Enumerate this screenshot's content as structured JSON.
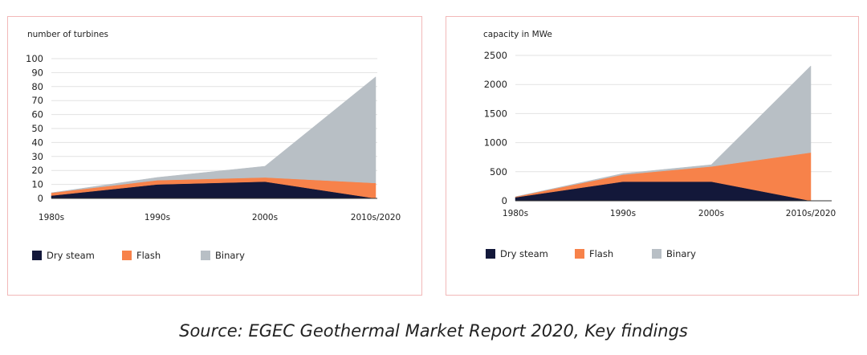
{
  "colors": {
    "dry_steam": "#13183a",
    "flash": "#f7824a",
    "binary": "#b8bfc5",
    "grid": "#e2e2e2",
    "axis": "#333333",
    "panel_border": "#f2b8b8"
  },
  "chart_data": [
    {
      "type": "area",
      "stacked": true,
      "title": "number of turbines",
      "categories": [
        "1980s",
        "1990s",
        "2000s",
        "2010s/2020"
      ],
      "ylim": [
        0,
        100
      ],
      "yticks": [
        "100",
        "90",
        "80",
        "70",
        "60",
        "50",
        "40",
        "30",
        "20",
        "10",
        "0"
      ],
      "ytick_values": [
        100,
        90,
        80,
        70,
        60,
        50,
        40,
        30,
        20,
        10,
        0
      ],
      "series": [
        {
          "name": "Dry steam",
          "color_key": "dry_steam",
          "values": [
            2,
            10,
            12,
            0
          ]
        },
        {
          "name": "Flash",
          "color_key": "flash",
          "values": [
            2,
            3,
            3,
            11
          ]
        },
        {
          "name": "Binary",
          "color_key": "binary",
          "values": [
            0,
            2,
            8,
            76
          ]
        }
      ],
      "legend": [
        "Dry steam",
        "Flash",
        "Binary"
      ]
    },
    {
      "type": "area",
      "stacked": true,
      "title": "capacity in MWe",
      "categories": [
        "1980s",
        "1990s",
        "2000s",
        "2010s/2020"
      ],
      "ylim": [
        0,
        2500
      ],
      "yticks": [
        "2500",
        "2000",
        "1500",
        "1000",
        "500",
        "0"
      ],
      "ytick_values": [
        2500,
        2000,
        1500,
        1000,
        500,
        0
      ],
      "series": [
        {
          "name": "Dry steam",
          "color_key": "dry_steam",
          "values": [
            60,
            330,
            330,
            0
          ]
        },
        {
          "name": "Flash",
          "color_key": "flash",
          "values": [
            10,
            120,
            260,
            830
          ]
        },
        {
          "name": "Binary",
          "color_key": "binary",
          "values": [
            0,
            20,
            30,
            1490
          ]
        }
      ],
      "legend": [
        "Dry steam",
        "Flash",
        "Binary"
      ]
    }
  ],
  "caption": "Source: EGEC Geothermal Market Report 2020, Key findings"
}
